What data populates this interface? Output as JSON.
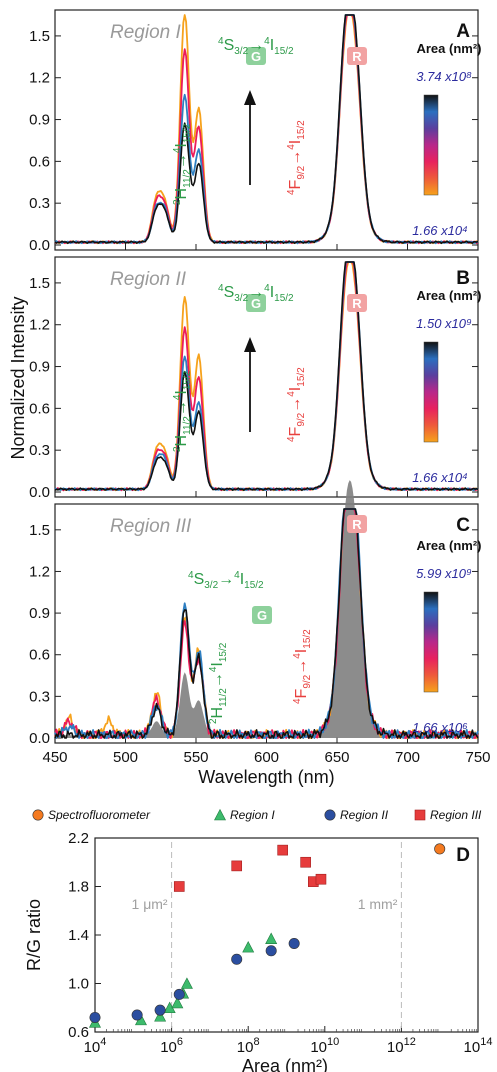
{
  "chart_data": [
    {
      "panel": "A",
      "type": "line",
      "region_label": "Region I",
      "xlim": [
        450,
        750
      ],
      "ylim": [
        0,
        1.65
      ],
      "yticks": [
        "0.0",
        "0.3",
        "0.6",
        "0.9",
        "1.2",
        "1.5"
      ],
      "transitions": {
        "green_upper": {
          "main": "4S3/2→4I15/2",
          "a": "4",
          "b": "S",
          "c": "3/2",
          "d": "4",
          "e": "I",
          "f": "15/2"
        },
        "green_lower": {
          "main": "2H11/2→4I15/2",
          "a": "2",
          "b": "H",
          "c": "11/2",
          "d": "4",
          "e": "I",
          "f": "15/2"
        },
        "red": {
          "main": "4F9/2→4I15/2",
          "a": "4",
          "b": "F",
          "c": "9/2",
          "d": "4",
          "e": "I",
          "f": "15/2"
        }
      },
      "badges": {
        "green": "G",
        "red": "R"
      },
      "colorbar": {
        "title": "Area (nm²)",
        "max": "3.74 x10⁸",
        "min": "1.66 x10⁴"
      },
      "series": [
        {
          "color": "#f6a21c",
          "peaks": [
            [
              522,
              0.3
            ],
            [
              528,
              0.26
            ],
            [
              542,
              1.65
            ],
            [
              552,
              0.95
            ],
            [
              656,
              0.93
            ],
            [
              663,
              0.81
            ]
          ]
        },
        {
          "color": "#ec1c5a",
          "peaks": [
            [
              522,
              0.27
            ],
            [
              528,
              0.24
            ],
            [
              542,
              1.38
            ],
            [
              552,
              0.82
            ],
            [
              656,
              0.95
            ],
            [
              663,
              0.84
            ]
          ]
        },
        {
          "color": "#2e7fc2",
          "peaks": [
            [
              522,
              0.23
            ],
            [
              528,
              0.21
            ],
            [
              542,
              1.05
            ],
            [
              552,
              0.66
            ],
            [
              656,
              0.98
            ],
            [
              663,
              0.87
            ]
          ]
        },
        {
          "color": "#111111",
          "peaks": [
            [
              522,
              0.22
            ],
            [
              528,
              0.2
            ],
            [
              542,
              0.85
            ],
            [
              552,
              0.56
            ],
            [
              656,
              1.0
            ],
            [
              663,
              0.88
            ]
          ]
        }
      ]
    },
    {
      "panel": "B",
      "type": "line",
      "region_label": "Region II",
      "xlim": [
        450,
        750
      ],
      "ylim": [
        0,
        1.65
      ],
      "yticks": [
        "0.0",
        "0.3",
        "0.6",
        "0.9",
        "1.2",
        "1.5"
      ],
      "transitions": {
        "green_upper": {
          "main": "4S3/2→4I15/2",
          "a": "4",
          "b": "S",
          "c": "3/2",
          "d": "4",
          "e": "I",
          "f": "15/2"
        },
        "green_lower": {
          "main": "2H11/2→4I15/2",
          "a": "2",
          "b": "H",
          "c": "11/2",
          "d": "4",
          "e": "I",
          "f": "15/2"
        },
        "red": {
          "main": "4F9/2→4I15/2",
          "a": "4",
          "b": "F",
          "c": "9/2",
          "d": "4",
          "e": "I",
          "f": "15/2"
        }
      },
      "badges": {
        "green": "G",
        "red": "R"
      },
      "colorbar": {
        "title": "Area (nm²)",
        "max": "1.50 x10⁹",
        "min": "1.66 x10⁴"
      },
      "series": [
        {
          "color": "#f6a21c",
          "peaks": [
            [
              522,
              0.26
            ],
            [
              528,
              0.24
            ],
            [
              542,
              1.38
            ],
            [
              552,
              0.95
            ],
            [
              656,
              0.9
            ],
            [
              663,
              0.82
            ]
          ]
        },
        {
          "color": "#ec1c5a",
          "peaks": [
            [
              522,
              0.23
            ],
            [
              528,
              0.21
            ],
            [
              542,
              1.15
            ],
            [
              552,
              0.8
            ],
            [
              656,
              0.93
            ],
            [
              663,
              0.85
            ]
          ]
        },
        {
          "color": "#2e7fc2",
          "peaks": [
            [
              522,
              0.2
            ],
            [
              528,
              0.19
            ],
            [
              542,
              0.95
            ],
            [
              552,
              0.62
            ],
            [
              656,
              0.97
            ],
            [
              663,
              0.88
            ]
          ]
        },
        {
          "color": "#111111",
          "peaks": [
            [
              522,
              0.18
            ],
            [
              528,
              0.17
            ],
            [
              542,
              0.84
            ],
            [
              552,
              0.55
            ],
            [
              656,
              1.0
            ],
            [
              663,
              0.88
            ]
          ]
        }
      ]
    },
    {
      "panel": "C",
      "type": "line",
      "region_label": "Region III",
      "xlim": [
        450,
        750
      ],
      "ylim": [
        0,
        1.65
      ],
      "xticks": [
        "450",
        "500",
        "550",
        "600",
        "650",
        "700",
        "750"
      ],
      "yticks": [
        "0.0",
        "0.3",
        "0.6",
        "0.9",
        "1.2",
        "1.5"
      ],
      "xlabel": "Wavelength (nm)",
      "transitions": {
        "green_upper": {
          "main": "4S3/2→4I15/2",
          "a": "4",
          "b": "S",
          "c": "3/2",
          "d": "4",
          "e": "I",
          "f": "15/2"
        },
        "green_lower": {
          "main": "2H11/2→4I15/2",
          "a": "2",
          "b": "H",
          "c": "11/2",
          "d": "4",
          "e": "I",
          "f": "15/2"
        },
        "red": {
          "main": "4F9/2→4I15/2",
          "a": "4",
          "b": "F",
          "c": "9/2",
          "d": "4",
          "e": "I",
          "f": "15/2"
        }
      },
      "badges": {
        "green": "G",
        "red": "R"
      },
      "colorbar": {
        "title": "Area (nm²)",
        "max": "5.99 x10⁹",
        "min": "1.66 x10⁶"
      },
      "series": [
        {
          "color": "#f6a21c",
          "peaks": [
            [
              460,
              0.12
            ],
            [
              488,
              0.1
            ],
            [
              522,
              0.3
            ],
            [
              542,
              0.85
            ],
            [
              552,
              0.6
            ],
            [
              656,
              1.08
            ],
            [
              663,
              0.95
            ]
          ]
        },
        {
          "color": "#ec1c5a",
          "peaks": [
            [
              460,
              0.1
            ],
            [
              522,
              0.26
            ],
            [
              542,
              0.8
            ],
            [
              552,
              0.55
            ],
            [
              656,
              1.05
            ],
            [
              663,
              0.92
            ]
          ]
        },
        {
          "color": "#2e7fc2",
          "peaks": [
            [
              460,
              0.06
            ],
            [
              522,
              0.22
            ],
            [
              542,
              0.95
            ],
            [
              552,
              0.6
            ],
            [
              656,
              1.12
            ],
            [
              663,
              0.98
            ]
          ]
        },
        {
          "color": "#111111",
          "peaks": [
            [
              522,
              0.2
            ],
            [
              542,
              0.92
            ],
            [
              552,
              0.55
            ],
            [
              656,
              1.1
            ],
            [
              663,
              0.95
            ]
          ]
        }
      ],
      "filled": {
        "color": "#808080",
        "peaks": [
          [
            522,
            0.1
          ],
          [
            542,
            0.45
          ],
          [
            552,
            0.25
          ],
          [
            656,
            1.0
          ],
          [
            663,
            0.9
          ]
        ]
      }
    },
    {
      "panel": "D",
      "type": "scatter",
      "xlabel": "Area (nm²)",
      "ylabel": "R/G  ratio",
      "xscale": "log",
      "xlim": [
        4,
        14
      ],
      "ylim": [
        0.6,
        2.2
      ],
      "xtick_exponents": [
        4,
        6,
        8,
        10,
        12,
        14
      ],
      "xtick_base": "10",
      "yticks": [
        "0.6",
        "1.0",
        "1.4",
        "1.8",
        "2.2"
      ],
      "annotations": [
        {
          "text": "1 μm²",
          "x": 6
        },
        {
          "text": "1 mm²",
          "x": 12
        }
      ],
      "series": [
        {
          "name": "Spectrofluorometer",
          "marker": "circle",
          "color": "#f47a20",
          "points": [
            [
              13.0,
              2.11
            ]
          ]
        },
        {
          "name": "Region I",
          "marker": "triangle",
          "color": "#3dbb6c",
          "points": [
            [
              4.0,
              0.68
            ],
            [
              5.2,
              0.7
            ],
            [
              5.7,
              0.73
            ],
            [
              5.95,
              0.8
            ],
            [
              6.15,
              0.84
            ],
            [
              6.3,
              0.92
            ],
            [
              6.4,
              1.0
            ],
            [
              8.0,
              1.3
            ],
            [
              8.6,
              1.37
            ]
          ]
        },
        {
          "name": "Region II",
          "marker": "circle",
          "color": "#2b4ea0",
          "points": [
            [
              4.0,
              0.72
            ],
            [
              5.1,
              0.74
            ],
            [
              5.7,
              0.78
            ],
            [
              6.2,
              0.91
            ],
            [
              7.7,
              1.2
            ],
            [
              8.6,
              1.27
            ],
            [
              9.2,
              1.33
            ]
          ]
        },
        {
          "name": "Region III",
          "marker": "square",
          "color": "#e63c3c",
          "points": [
            [
              6.2,
              1.8
            ],
            [
              7.7,
              1.97
            ],
            [
              8.9,
              2.1
            ],
            [
              9.5,
              2.0
            ],
            [
              9.7,
              1.84
            ],
            [
              9.9,
              1.86
            ]
          ]
        }
      ]
    }
  ],
  "shared": {
    "ylabel_spectra": "Normalized Intensity"
  }
}
